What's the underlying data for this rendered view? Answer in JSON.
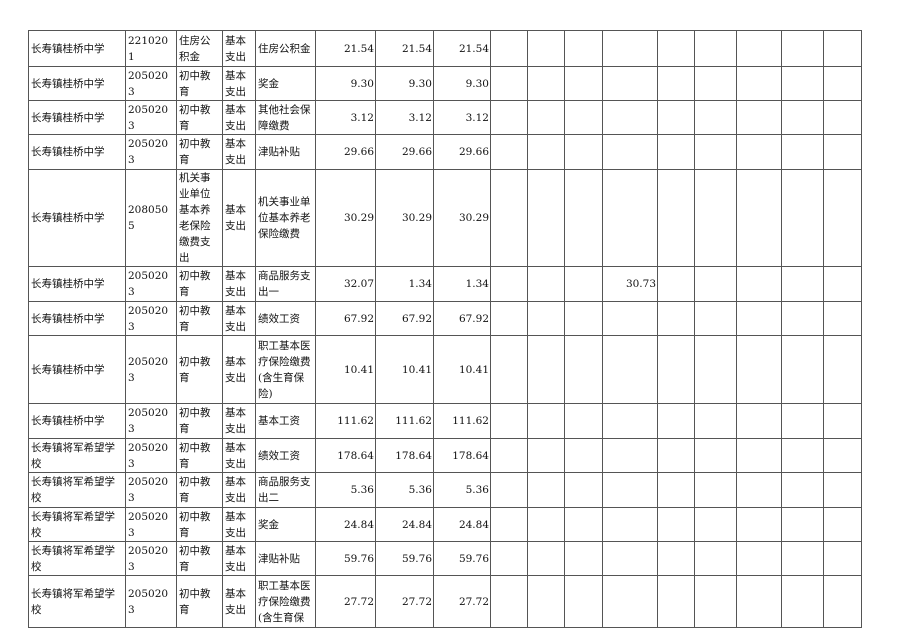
{
  "rows": [
    {
      "cells": [
        "长寿镇桂桥中学",
        "2210201",
        "住房公积金",
        "基本支出",
        "住房公积金",
        "21.54",
        "21.54",
        "21.54",
        "",
        "",
        "",
        "",
        "",
        "",
        "",
        "",
        ""
      ]
    },
    {
      "cells": [
        "长寿镇桂桥中学",
        "2050203",
        "初中教育",
        "基本支出",
        "奖金",
        "9.30",
        "9.30",
        "9.30",
        "",
        "",
        "",
        "",
        "",
        "",
        "",
        "",
        ""
      ]
    },
    {
      "cells": [
        "长寿镇桂桥中学",
        "2050203",
        "初中教育",
        "基本支出",
        "其他社会保障缴费",
        "3.12",
        "3.12",
        "3.12",
        "",
        "",
        "",
        "",
        "",
        "",
        "",
        "",
        ""
      ]
    },
    {
      "cells": [
        "长寿镇桂桥中学",
        "2050203",
        "初中教育",
        "基本支出",
        "津贴补贴",
        "29.66",
        "29.66",
        "29.66",
        "",
        "",
        "",
        "",
        "",
        "",
        "",
        "",
        ""
      ]
    },
    {
      "cells": [
        "长寿镇桂桥中学",
        "2080505",
        "机关事业单位基本养老保险缴费支出",
        "基本支出",
        "机关事业单位基本养老保险缴费",
        "30.29",
        "30.29",
        "30.29",
        "",
        "",
        "",
        "",
        "",
        "",
        "",
        "",
        ""
      ]
    },
    {
      "cells": [
        "长寿镇桂桥中学",
        "2050203",
        "初中教育",
        "基本支出",
        "商品服务支出一",
        "32.07",
        "1.34",
        "1.34",
        "",
        "",
        "",
        "30.73",
        "",
        "",
        "",
        "",
        ""
      ]
    },
    {
      "cells": [
        "长寿镇桂桥中学",
        "2050203",
        "初中教育",
        "基本支出",
        "绩效工资",
        "67.92",
        "67.92",
        "67.92",
        "",
        "",
        "",
        "",
        "",
        "",
        "",
        "",
        ""
      ]
    },
    {
      "cells": [
        "长寿镇桂桥中学",
        "2050203",
        "初中教育",
        "基本支出",
        "职工基本医疗保险缴费(含生育保险)",
        "10.41",
        "10.41",
        "10.41",
        "",
        "",
        "",
        "",
        "",
        "",
        "",
        "",
        ""
      ]
    },
    {
      "cells": [
        "长寿镇桂桥中学",
        "2050203",
        "初中教育",
        "基本支出",
        "基本工资",
        "111.62",
        "111.62",
        "111.62",
        "",
        "",
        "",
        "",
        "",
        "",
        "",
        "",
        ""
      ]
    },
    {
      "cells": [
        "长寿镇将军希望学校",
        "2050203",
        "初中教育",
        "基本支出",
        "绩效工资",
        "178.64",
        "178.64",
        "178.64",
        "",
        "",
        "",
        "",
        "",
        "",
        "",
        "",
        ""
      ]
    },
    {
      "cells": [
        "长寿镇将军希望学校",
        "2050203",
        "初中教育",
        "基本支出",
        "商品服务支出二",
        "5.36",
        "5.36",
        "5.36",
        "",
        "",
        "",
        "",
        "",
        "",
        "",
        "",
        ""
      ]
    },
    {
      "cells": [
        "长寿镇将军希望学校",
        "2050203",
        "初中教育",
        "基本支出",
        "奖金",
        "24.84",
        "24.84",
        "24.84",
        "",
        "",
        "",
        "",
        "",
        "",
        "",
        "",
        ""
      ]
    },
    {
      "cells": [
        "长寿镇将军希望学校",
        "2050203",
        "初中教育",
        "基本支出",
        "津贴补贴",
        "59.76",
        "59.76",
        "59.76",
        "",
        "",
        "",
        "",
        "",
        "",
        "",
        "",
        ""
      ]
    },
    {
      "cells": [
        "长寿镇将军希望学校",
        "2050203",
        "初中教育",
        "基本支出",
        "职工基本医疗保险缴费(含生育保",
        "27.72",
        "27.72",
        "27.72",
        "",
        "",
        "",
        "",
        "",
        "",
        "",
        "",
        ""
      ]
    }
  ]
}
